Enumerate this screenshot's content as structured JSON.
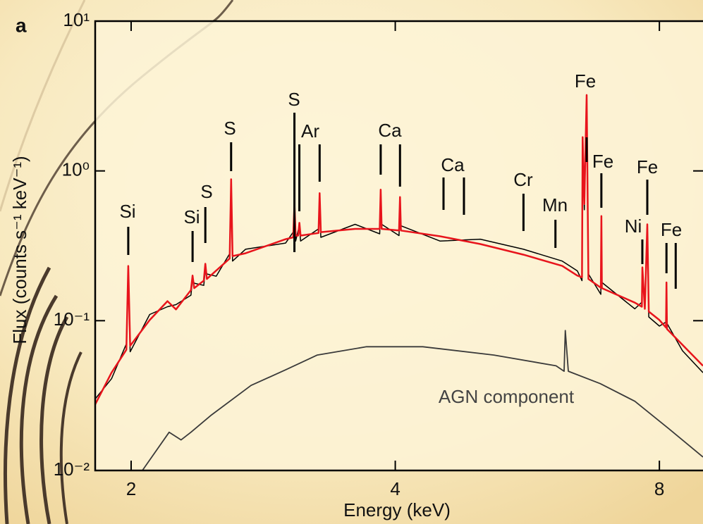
{
  "chart_data": {
    "type": "line",
    "panel_label": "a",
    "x_label": "Energy (keV)",
    "y_label": "Flux (counts s⁻¹ keV⁻¹)",
    "xscale": "log",
    "yscale": "log",
    "xlim": [
      1.82,
      8.97
    ],
    "ylim": [
      0.01,
      10
    ],
    "xticks": [
      2,
      4,
      8
    ],
    "yticks": [
      {
        "value": 10,
        "label": "10¹"
      },
      {
        "value": 1,
        "label": "10⁰"
      },
      {
        "value": 0.1,
        "label": "10⁻¹"
      },
      {
        "value": 0.01,
        "label": "10⁻²"
      }
    ],
    "series": [
      {
        "color": "#000000",
        "x": [
          1.82,
          1.9,
          1.975,
          1.985,
          1.995,
          2.1,
          2.2,
          2.25,
          2.34,
          2.35,
          2.36,
          2.42,
          2.43,
          2.44,
          2.5,
          2.59,
          2.6,
          2.61,
          2.7,
          3.0,
          3.06,
          3.07,
          3.08,
          3.1,
          3.11,
          3.12,
          3.27,
          3.28,
          3.29,
          3.6,
          3.84,
          3.85,
          3.86,
          4.04,
          4.05,
          4.06,
          4.5,
          5.0,
          5.6,
          6.2,
          6.45,
          6.53,
          6.54,
          6.57,
          6.61,
          6.64,
          6.86,
          6.87,
          6.88,
          7.5,
          7.64,
          7.65,
          7.7,
          7.75,
          7.78,
          8.0,
          8.14,
          8.15,
          8.16,
          8.5,
          8.97
        ],
        "values": [
          0.03,
          0.041,
          0.07,
          0.21,
          0.062,
          0.11,
          0.124,
          0.128,
          0.148,
          0.19,
          0.178,
          0.172,
          0.22,
          0.205,
          0.198,
          0.28,
          0.8,
          0.25,
          0.3,
          0.33,
          0.39,
          0.55,
          0.34,
          0.4,
          0.42,
          0.34,
          0.41,
          0.65,
          0.36,
          0.44,
          0.38,
          0.7,
          0.44,
          0.37,
          0.62,
          0.43,
          0.34,
          0.35,
          0.3,
          0.25,
          0.215,
          0.185,
          1.5,
          0.55,
          3.0,
          0.205,
          0.15,
          0.46,
          0.18,
          0.12,
          0.133,
          0.21,
          0.13,
          0.4,
          0.106,
          0.092,
          0.098,
          0.165,
          0.096,
          0.063,
          0.045
        ]
      },
      {
        "color": "#e8141c",
        "x": [
          1.82,
          1.9,
          1.975,
          1.985,
          1.995,
          2.1,
          2.2,
          2.25,
          2.34,
          2.35,
          2.36,
          2.42,
          2.43,
          2.44,
          2.5,
          2.59,
          2.6,
          2.61,
          2.7,
          3.0,
          3.06,
          3.07,
          3.08,
          3.1,
          3.11,
          3.12,
          3.27,
          3.28,
          3.29,
          3.6,
          3.84,
          3.85,
          3.86,
          4.04,
          4.05,
          4.06,
          4.5,
          5.0,
          5.6,
          6.2,
          6.45,
          6.53,
          6.54,
          6.57,
          6.61,
          6.64,
          6.86,
          6.87,
          6.88,
          7.5,
          7.64,
          7.65,
          7.7,
          7.75,
          7.78,
          8.0,
          8.14,
          8.15,
          8.16,
          8.5,
          8.97
        ],
        "values": [
          0.0276,
          0.045,
          0.064,
          0.232,
          0.068,
          0.101,
          0.135,
          0.119,
          0.16,
          0.2,
          0.165,
          0.185,
          0.24,
          0.19,
          0.216,
          0.26,
          0.88,
          0.27,
          0.282,
          0.35,
          0.36,
          0.6,
          0.37,
          0.37,
          0.45,
          0.37,
          0.385,
          0.71,
          0.39,
          0.41,
          0.41,
          0.75,
          0.41,
          0.4,
          0.67,
          0.4,
          0.366,
          0.325,
          0.276,
          0.232,
          0.2,
          0.195,
          1.68,
          0.6,
          3.21,
          0.19,
          0.166,
          0.5,
          0.165,
          0.132,
          0.124,
          0.227,
          0.12,
          0.44,
          0.115,
          0.101,
          0.09,
          0.18,
          0.088,
          0.069,
          0.05
        ]
      },
      {
        "name": "AGN component",
        "color": "#3a3a3a",
        "x": [
          2.06,
          2.21,
          2.28,
          2.34,
          2.47,
          2.74,
          3.0,
          3.26,
          3.71,
          4.3,
          5.18,
          6.1,
          6.23,
          6.25,
          6.3,
          6.85,
          7.5,
          8.2,
          8.97
        ],
        "values": [
          0.01,
          0.018,
          0.016,
          0.018,
          0.0235,
          0.037,
          0.047,
          0.059,
          0.067,
          0.067,
          0.059,
          0.05,
          0.046,
          0.086,
          0.046,
          0.038,
          0.029,
          0.019,
          0.0123
        ]
      }
    ],
    "annotations": [
      {
        "label": "Si",
        "x": 1.985
      },
      {
        "label": "Si",
        "x": 2.35
      },
      {
        "label": "S",
        "x": 2.43
      },
      {
        "label": "S",
        "x": 2.6
      },
      {
        "label": "S",
        "x": 3.07
      },
      {
        "label": null,
        "x": 3.11
      },
      {
        "label": "Ar",
        "x": 3.28
      },
      {
        "label": "Ca",
        "x": 3.85
      },
      {
        "label": null,
        "x": 4.05
      },
      {
        "label": "Ca",
        "x": 4.54
      },
      {
        "label": null,
        "x": 4.79
      },
      {
        "label": "Cr",
        "x": 5.6
      },
      {
        "label": "Mn",
        "x": 6.09
      },
      {
        "label": "Fe",
        "x": 6.61
      },
      {
        "label": "Fe",
        "x": 6.87
      },
      {
        "label": "Ni",
        "x": 7.65
      },
      {
        "label": "Fe",
        "x": 7.75
      },
      {
        "label": "Fe",
        "x": 8.15
      },
      {
        "label": null,
        "x": 8.35
      }
    ]
  }
}
